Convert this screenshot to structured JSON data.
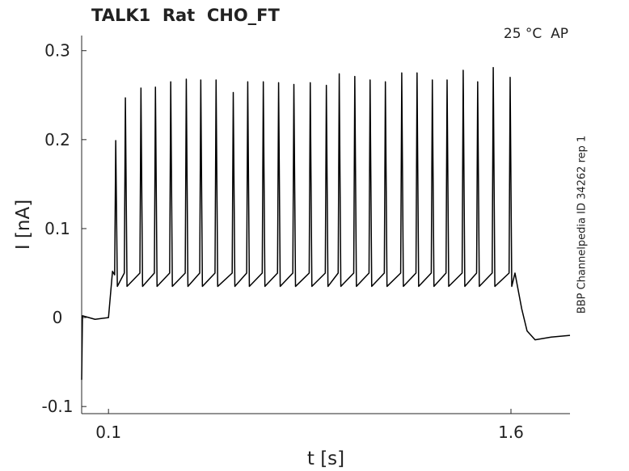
{
  "chart_data": {
    "type": "line",
    "title": "TALK1  Rat  CHO_FT",
    "annotation": "25 °C  AP",
    "side_note": "BBP Channelpedia ID 34262 rep 1",
    "xlabel": "t [s]",
    "ylabel": "I [nA]",
    "color": "#000000",
    "x": [
      0,
      0.003,
      0.05,
      0.1,
      0.115,
      0.123,
      0.127,
      0.133,
      0.159,
      0.163,
      0.169,
      0.217,
      0.221,
      0.227,
      0.271,
      0.275,
      0.281,
      0.328,
      0.332,
      0.338,
      0.386,
      0.39,
      0.396,
      0.44,
      0.444,
      0.45,
      0.497,
      0.501,
      0.507,
      0.561,
      0.565,
      0.571,
      0.615,
      0.619,
      0.625,
      0.673,
      0.677,
      0.683,
      0.73,
      0.734,
      0.74,
      0.787,
      0.791,
      0.797,
      0.848,
      0.852,
      0.858,
      0.908,
      0.912,
      0.918,
      0.956,
      0.96,
      0.966,
      1.014,
      1.018,
      1.024,
      1.071,
      1.075,
      1.081,
      1.128,
      1.132,
      1.138,
      1.189,
      1.193,
      1.199,
      1.246,
      1.25,
      1.256,
      1.303,
      1.307,
      1.313,
      1.358,
      1.362,
      1.368,
      1.418,
      1.422,
      1.428,
      1.472,
      1.476,
      1.482,
      1.53,
      1.534,
      1.54,
      1.593,
      1.597,
      1.603,
      1.615,
      1.64,
      1.66,
      1.69,
      1.75,
      1.82
    ],
    "values": [
      -0.07,
      0.002,
      -0.002,
      0.0,
      0.052,
      0.048,
      0.199,
      0.035,
      0.05,
      0.247,
      0.035,
      0.05,
      0.258,
      0.035,
      0.05,
      0.259,
      0.035,
      0.05,
      0.265,
      0.035,
      0.05,
      0.268,
      0.035,
      0.05,
      0.267,
      0.035,
      0.05,
      0.267,
      0.035,
      0.05,
      0.253,
      0.035,
      0.05,
      0.265,
      0.035,
      0.05,
      0.265,
      0.035,
      0.05,
      0.264,
      0.035,
      0.05,
      0.262,
      0.035,
      0.05,
      0.264,
      0.035,
      0.05,
      0.261,
      0.035,
      0.05,
      0.274,
      0.035,
      0.05,
      0.271,
      0.035,
      0.05,
      0.267,
      0.035,
      0.05,
      0.265,
      0.035,
      0.05,
      0.275,
      0.035,
      0.05,
      0.275,
      0.035,
      0.05,
      0.267,
      0.035,
      0.05,
      0.267,
      0.035,
      0.05,
      0.278,
      0.035,
      0.05,
      0.265,
      0.035,
      0.05,
      0.281,
      0.035,
      0.05,
      0.27,
      0.035,
      0.05,
      0.01,
      -0.015,
      -0.025,
      -0.022,
      -0.02
    ],
    "xlim": [
      0,
      1.82
    ],
    "ylim": [
      -0.108,
      0.317
    ],
    "xticks": [
      0.1,
      1.6
    ],
    "yticks": [
      -0.1,
      0,
      0.1,
      0.2,
      0.3
    ]
  }
}
